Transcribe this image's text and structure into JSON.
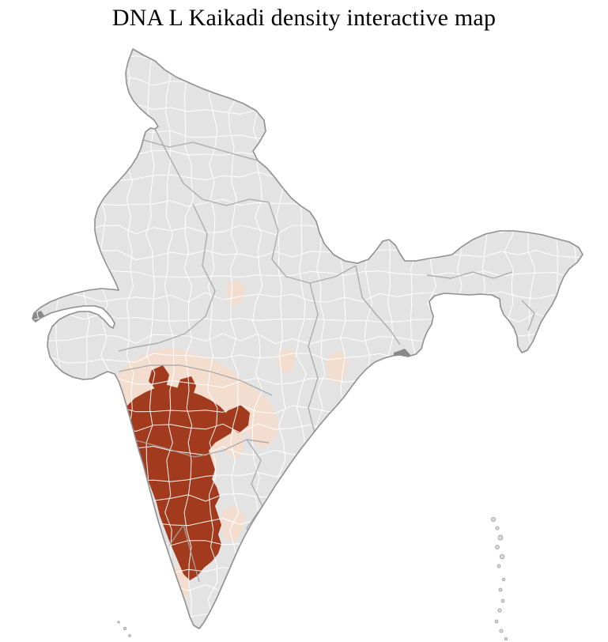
{
  "title": "DNA L Kaikadi density interactive map",
  "map": {
    "region_label": "India district choropleth",
    "colors": {
      "background": "#ffffff",
      "land_base": "#e3e3e3",
      "district_border": "#ffffff",
      "state_border": "#a6a6a6",
      "outline": "#8f8f8f",
      "density_high": "#a23b1d",
      "density_low": "#f3ddcf",
      "no_data": "#8a8a8a",
      "island": "#d9d9d9"
    }
  }
}
